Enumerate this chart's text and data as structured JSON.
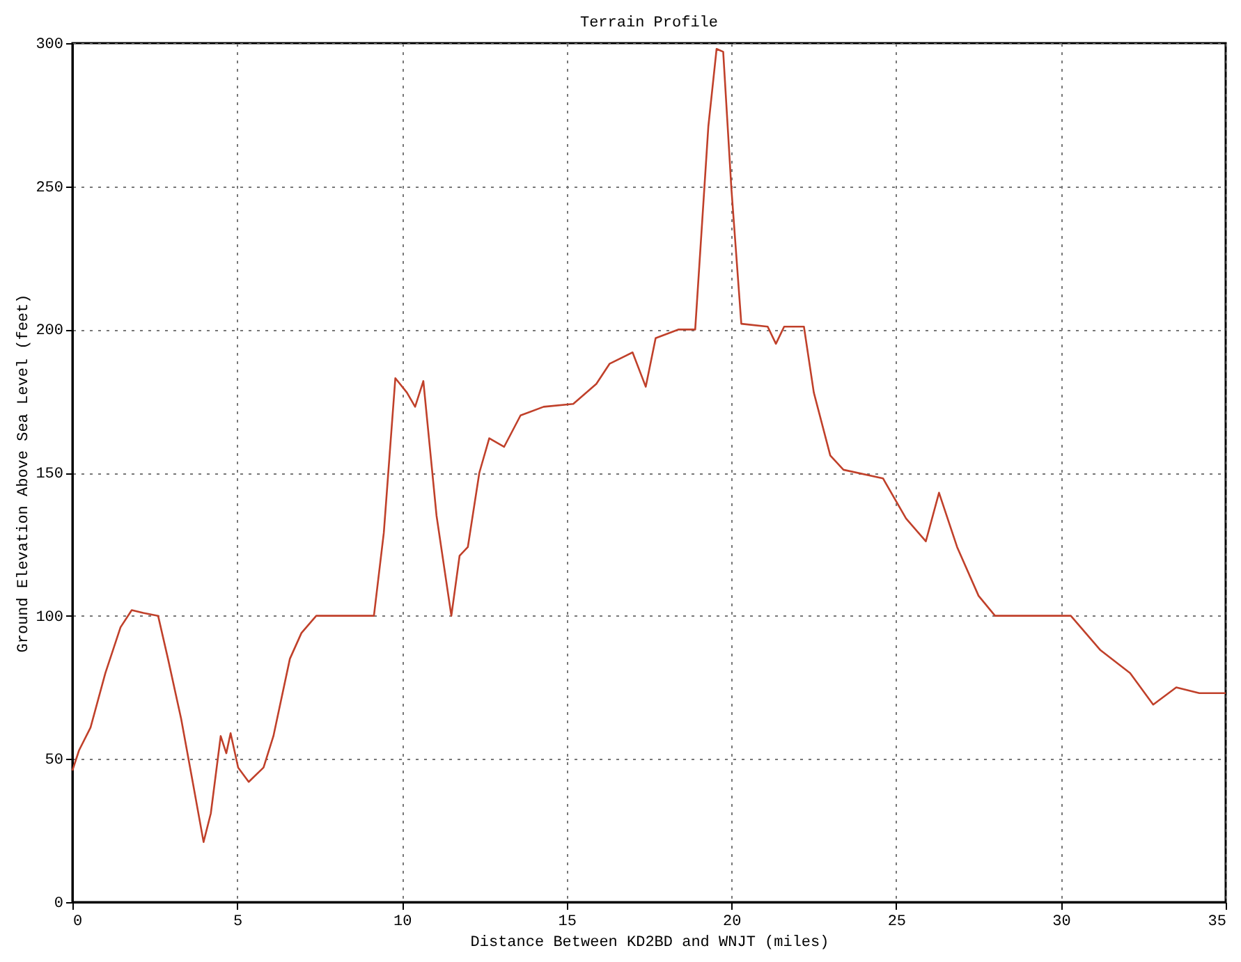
{
  "chart_data": {
    "type": "line",
    "title": "Terrain Profile",
    "xlabel": "Distance Between KD2BD and WNJT (miles)",
    "ylabel": "Ground Elevation Above Sea Level (feet)",
    "xlim": [
      0,
      35
    ],
    "ylim": [
      0,
      300
    ],
    "xticks": [
      0,
      5,
      10,
      15,
      20,
      25,
      30,
      35
    ],
    "yticks": [
      0,
      50,
      100,
      150,
      200,
      250,
      300
    ],
    "grid": true,
    "marker": "none",
    "line_style": "solid",
    "series": [
      {
        "color": "#c0402a",
        "x": [
          0,
          0.2,
          0.55,
          1.0,
          1.46,
          1.8,
          2.15,
          2.6,
          2.9,
          3.3,
          3.65,
          3.98,
          4.2,
          4.5,
          4.67,
          4.8,
          5.03,
          5.35,
          5.8,
          6.1,
          6.6,
          6.95,
          7.4,
          9.15,
          9.45,
          9.8,
          10.15,
          10.4,
          10.65,
          11.05,
          11.5,
          11.75,
          12.0,
          12.35,
          12.65,
          13.1,
          13.6,
          14.3,
          15.2,
          15.9,
          16.3,
          17.0,
          17.4,
          17.7,
          18.4,
          18.9,
          19.3,
          19.55,
          19.75,
          20.0,
          20.3,
          21.1,
          21.35,
          21.6,
          22.2,
          22.5,
          23.0,
          23.4,
          24.6,
          25.3,
          25.9,
          26.3,
          26.85,
          27.5,
          28.0,
          30.3,
          31.2,
          32.1,
          32.8,
          33.5,
          34.2,
          35
        ],
        "values": [
          46,
          53,
          61,
          80,
          96,
          102,
          101,
          100,
          85,
          64,
          42,
          21,
          31,
          58,
          52,
          59,
          47,
          42,
          47,
          58,
          85,
          94,
          100,
          100,
          129,
          183,
          178,
          173,
          182,
          135,
          100,
          121,
          124,
          150,
          162,
          159,
          170,
          173,
          174,
          181,
          188,
          192,
          180,
          197,
          200,
          200,
          271,
          298,
          297,
          249,
          202,
          201,
          195,
          201,
          201,
          178,
          156,
          151,
          148,
          134,
          126,
          143,
          124,
          107,
          100,
          100,
          88,
          80,
          69,
          75,
          73,
          73
        ]
      }
    ]
  }
}
